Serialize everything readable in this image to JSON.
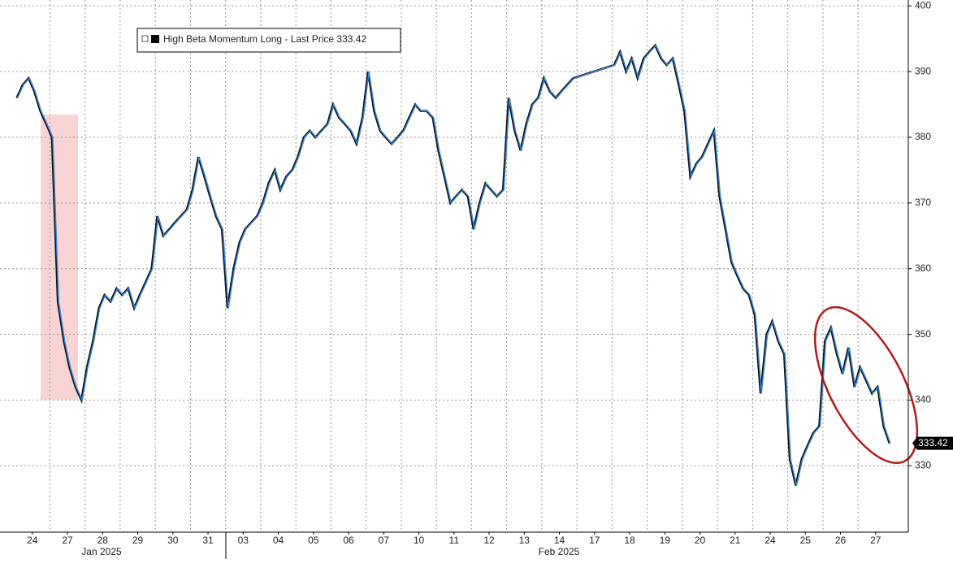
{
  "chart_data": {
    "type": "line",
    "legend": "top-left",
    "grid": true,
    "month_labels": [
      "Jan 2025",
      "Feb 2025"
    ],
    "xlim": [
      -0.42,
      25.43
    ],
    "xticks": [
      {
        "value": 0.5,
        "label": "24"
      },
      {
        "value": 1.5,
        "label": "27"
      },
      {
        "value": 2.5,
        "label": "28"
      },
      {
        "value": 3.5,
        "label": "29"
      },
      {
        "value": 4.5,
        "label": "30"
      },
      {
        "value": 5.5,
        "label": "31"
      },
      {
        "value": 6.5,
        "label": "03"
      },
      {
        "value": 7.5,
        "label": "04"
      },
      {
        "value": 8.5,
        "label": "05"
      },
      {
        "value": 9.5,
        "label": "06"
      },
      {
        "value": 10.5,
        "label": "07"
      },
      {
        "value": 11.5,
        "label": "10"
      },
      {
        "value": 12.5,
        "label": "11"
      },
      {
        "value": 13.5,
        "label": "12"
      },
      {
        "value": 14.5,
        "label": "13"
      },
      {
        "value": 15.5,
        "label": "14"
      },
      {
        "value": 16.5,
        "label": "17"
      },
      {
        "value": 17.5,
        "label": "18"
      },
      {
        "value": 18.5,
        "label": "19"
      },
      {
        "value": 19.5,
        "label": "20"
      },
      {
        "value": 20.5,
        "label": "21"
      },
      {
        "value": 21.5,
        "label": "24"
      },
      {
        "value": 22.5,
        "label": "25"
      },
      {
        "value": 23.5,
        "label": "26"
      },
      {
        "value": 24.5,
        "label": "27"
      }
    ],
    "ylim": [
      319.9,
      400.9
    ],
    "yticks": [
      330,
      340,
      350,
      360,
      370,
      380,
      390,
      400
    ],
    "x": [
      0.08,
      0.25,
      0.42,
      0.58,
      0.75,
      0.92,
      1.08,
      1.25,
      1.42,
      1.58,
      1.75,
      1.92,
      2.08,
      2.25,
      2.42,
      2.58,
      2.75,
      2.92,
      3.08,
      3.25,
      3.42,
      3.58,
      3.75,
      3.92,
      4.08,
      4.25,
      4.42,
      4.58,
      4.75,
      4.92,
      5.08,
      5.25,
      5.42,
      5.58,
      5.75,
      5.92,
      6.08,
      6.25,
      6.42,
      6.58,
      6.75,
      6.92,
      7.08,
      7.25,
      7.42,
      7.58,
      7.75,
      7.92,
      8.08,
      8.25,
      8.42,
      8.58,
      8.75,
      8.92,
      9.08,
      9.25,
      9.42,
      9.58,
      9.75,
      9.92,
      10.08,
      10.25,
      10.42,
      10.58,
      10.75,
      10.92,
      11.08,
      11.25,
      11.42,
      11.58,
      11.75,
      11.92,
      12.08,
      12.25,
      12.42,
      12.58,
      12.75,
      12.92,
      13.08,
      13.25,
      13.42,
      13.58,
      13.75,
      13.92,
      14.08,
      14.25,
      14.42,
      14.58,
      14.75,
      14.92,
      15.08,
      15.25,
      15.42,
      15.58,
      15.75,
      15.92,
      17.08,
      17.25,
      17.42,
      17.58,
      17.75,
      17.92,
      18.08,
      18.25,
      18.42,
      18.58,
      18.75,
      18.92,
      19.08,
      19.25,
      19.42,
      19.58,
      19.75,
      19.92,
      20.08,
      20.25,
      20.42,
      20.58,
      20.75,
      20.92,
      21.08,
      21.25,
      21.42,
      21.58,
      21.75,
      21.92,
      22.08,
      22.25,
      22.42,
      22.58,
      22.75,
      22.92,
      23.08,
      23.25,
      23.42,
      23.58,
      23.75,
      23.92,
      24.08,
      24.25,
      24.42,
      24.58,
      24.75,
      24.92
    ],
    "series": [
      {
        "name": "High Beta Momentum Long - Last Price 333.42",
        "color": "#3a86d4",
        "values": [
          386,
          388,
          389,
          387,
          384,
          382,
          380,
          355,
          349,
          345,
          342,
          340,
          345,
          349,
          354,
          356,
          355,
          357,
          356,
          357,
          354,
          356,
          358,
          360,
          368,
          365,
          366,
          367,
          368,
          369,
          372,
          377,
          374,
          371,
          368,
          366,
          354,
          360,
          364,
          366,
          367,
          368,
          370,
          373,
          375,
          372,
          374,
          375,
          377,
          380,
          381,
          380,
          381,
          382,
          385,
          383,
          382,
          381,
          379,
          383,
          390,
          384,
          381,
          380,
          379,
          380,
          381,
          383,
          385,
          384,
          384,
          383,
          378,
          374,
          370,
          371,
          372,
          371,
          366,
          370,
          373,
          372,
          371,
          372,
          386,
          381,
          378,
          382,
          385,
          386,
          389,
          387,
          386,
          387,
          388,
          389,
          391,
          393,
          390,
          392,
          389,
          392,
          393,
          394,
          392,
          391,
          392,
          388,
          384,
          374,
          376,
          377,
          379,
          381,
          371,
          366,
          361,
          359,
          357,
          356,
          353,
          341,
          350,
          352,
          349,
          347,
          331,
          327,
          331,
          333,
          335,
          336,
          349,
          351,
          347,
          344,
          348,
          342,
          345,
          343,
          341,
          342,
          336,
          333.42
        ]
      }
    ]
  }
}
